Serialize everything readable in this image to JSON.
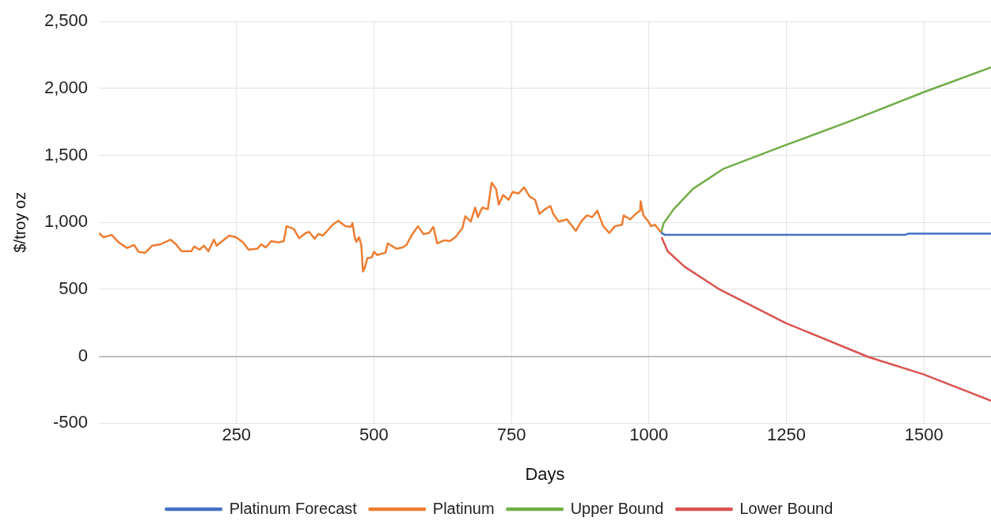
{
  "chart_data": {
    "type": "line",
    "xlabel": "Days",
    "ylabel": "$/troy oz",
    "xlim": [
      0,
      1622
    ],
    "xticks": [
      250,
      500,
      750,
      1000,
      1250,
      1500
    ],
    "ylim": [
      -500,
      2500
    ],
    "yticks": [
      -500,
      0,
      500,
      {
        "value": 1000,
        "label": "1,000"
      },
      {
        "value": 1500,
        "label": "1,500"
      },
      {
        "value": 2000,
        "label": "2,000"
      },
      {
        "value": 2500,
        "label": "2,500"
      }
    ],
    "grid": true,
    "legend": "bottom",
    "marker": "none",
    "line_style": "solid",
    "series": [
      {
        "name": "Platinum Forecast",
        "color": "#4472c4",
        "x": [
          1022,
          1029,
          1466,
          1471,
          1622
        ],
        "values": [
          924,
          906,
          906,
          915,
          915
        ]
      },
      {
        "name": "Platinum",
        "color": "#ed7d31",
        "x": [
          0,
          8,
          23,
          36,
          51,
          64,
          72,
          84,
          97,
          112,
          130,
          140,
          150,
          168,
          173,
          183,
          191,
          199,
          209,
          214,
          224,
          237,
          249,
          262,
          272,
          288,
          295,
          303,
          313,
          326,
          336,
          341,
          354,
          364,
          376,
          382,
          392,
          399,
          407,
          415,
          425,
          435,
          448,
          458,
          461,
          465,
          468,
          473,
          477,
          480,
          483,
          488,
          496,
          500,
          506,
          521,
          525,
          541,
          552,
          559,
          570,
          580,
          590,
          600,
          608,
          615,
          628,
          638,
          648,
          661,
          666,
          676,
          684,
          689,
          697,
          707,
          714,
          722,
          727,
          735,
          745,
          752,
          763,
          773,
          783,
          793,
          801,
          811,
          821,
          826,
          836,
          851,
          867,
          877,
          887,
          897,
          906,
          917,
          928,
          938,
          951,
          954,
          966,
          976,
          984,
          985,
          990,
          999,
          1004,
          1011,
          1022
        ],
        "values": [
          920,
          889,
          906,
          850,
          808,
          831,
          780,
          773,
          826,
          836,
          871,
          836,
          784,
          784,
          819,
          796,
          826,
          784,
          871,
          826,
          859,
          901,
          889,
          850,
          796,
          803,
          836,
          812,
          859,
          850,
          859,
          971,
          952,
          882,
          920,
          929,
          878,
          913,
          901,
          936,
          982,
          1012,
          971,
          966,
          994,
          889,
          854,
          889,
          831,
          633,
          656,
          733,
          738,
          780,
          756,
          773,
          843,
          803,
          812,
          831,
          913,
          971,
          913,
          920,
          966,
          843,
          866,
          859,
          889,
          959,
          1045,
          1006,
          1110,
          1040,
          1110,
          1098,
          1297,
          1250,
          1133,
          1203,
          1168,
          1227,
          1215,
          1262,
          1192,
          1168,
          1063,
          1098,
          1122,
          1063,
          1006,
          1022,
          936,
          1006,
          1052,
          1040,
          1087,
          971,
          920,
          971,
          982,
          1052,
          1022,
          1063,
          1087,
          1157,
          1052,
          1006,
          971,
          982,
          924
        ]
      },
      {
        "name": "Upper Bound",
        "color": "#70ad47",
        "x": [
          1022,
          1027,
          1045,
          1080,
          1136,
          1248,
          1370,
          1499,
          1622
        ],
        "values": [
          924,
          994,
          1098,
          1250,
          1401,
          1576,
          1762,
          1971,
          2158
        ]
      },
      {
        "name": "Lower Bound",
        "color": "#d9534f",
        "x": [
          1023,
          1034,
          1065,
          1126,
          1248,
          1400,
          1499,
          1622
        ],
        "values": [
          889,
          784,
          668,
          505,
          249,
          -7,
          -135,
          -333
        ]
      }
    ]
  }
}
